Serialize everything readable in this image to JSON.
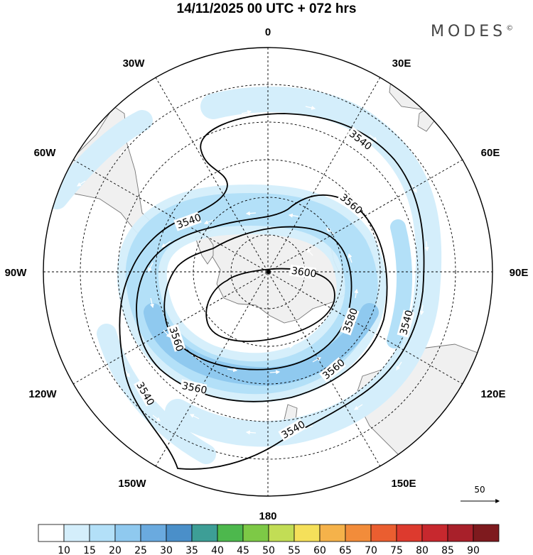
{
  "title": "14/11/2025  00 UTC  + 072 hrs",
  "brand": "MODES",
  "brand_mark": "©",
  "longitude_labels": {
    "lon_0": "0",
    "lon_30e": "30E",
    "lon_60e": "60E",
    "lon_90e": "90E",
    "lon_120e": "120E",
    "lon_150e": "150E",
    "lon_180": "180",
    "lon_150w": "150W",
    "lon_120w": "120W",
    "lon_90w": "90W",
    "lon_60w": "60W",
    "lon_30w": "30W"
  },
  "contours": [
    {
      "label": "3540"
    },
    {
      "label": "3560"
    },
    {
      "label": "3580"
    },
    {
      "label": "3600"
    }
  ],
  "vector_reference": "50",
  "colorbar": {
    "ticks": [
      "10",
      "15",
      "20",
      "25",
      "30",
      "35",
      "40",
      "45",
      "50",
      "55",
      "60",
      "65",
      "70",
      "75",
      "80",
      "85",
      "90"
    ],
    "colors": [
      "#ffffff",
      "#d4eefb",
      "#b3e0f8",
      "#8fc9ef",
      "#6aaadf",
      "#4a8fc9",
      "#3d9e96",
      "#4db84d",
      "#7dc946",
      "#c2dd55",
      "#f5e05a",
      "#f5b24a",
      "#f28c3a",
      "#ea5e30",
      "#dd3a2e",
      "#c7282e",
      "#a8202a",
      "#7e1a1e"
    ]
  },
  "colors": {
    "land": "#f0f0f0",
    "coast": "#777777",
    "contour": "#000000"
  }
}
